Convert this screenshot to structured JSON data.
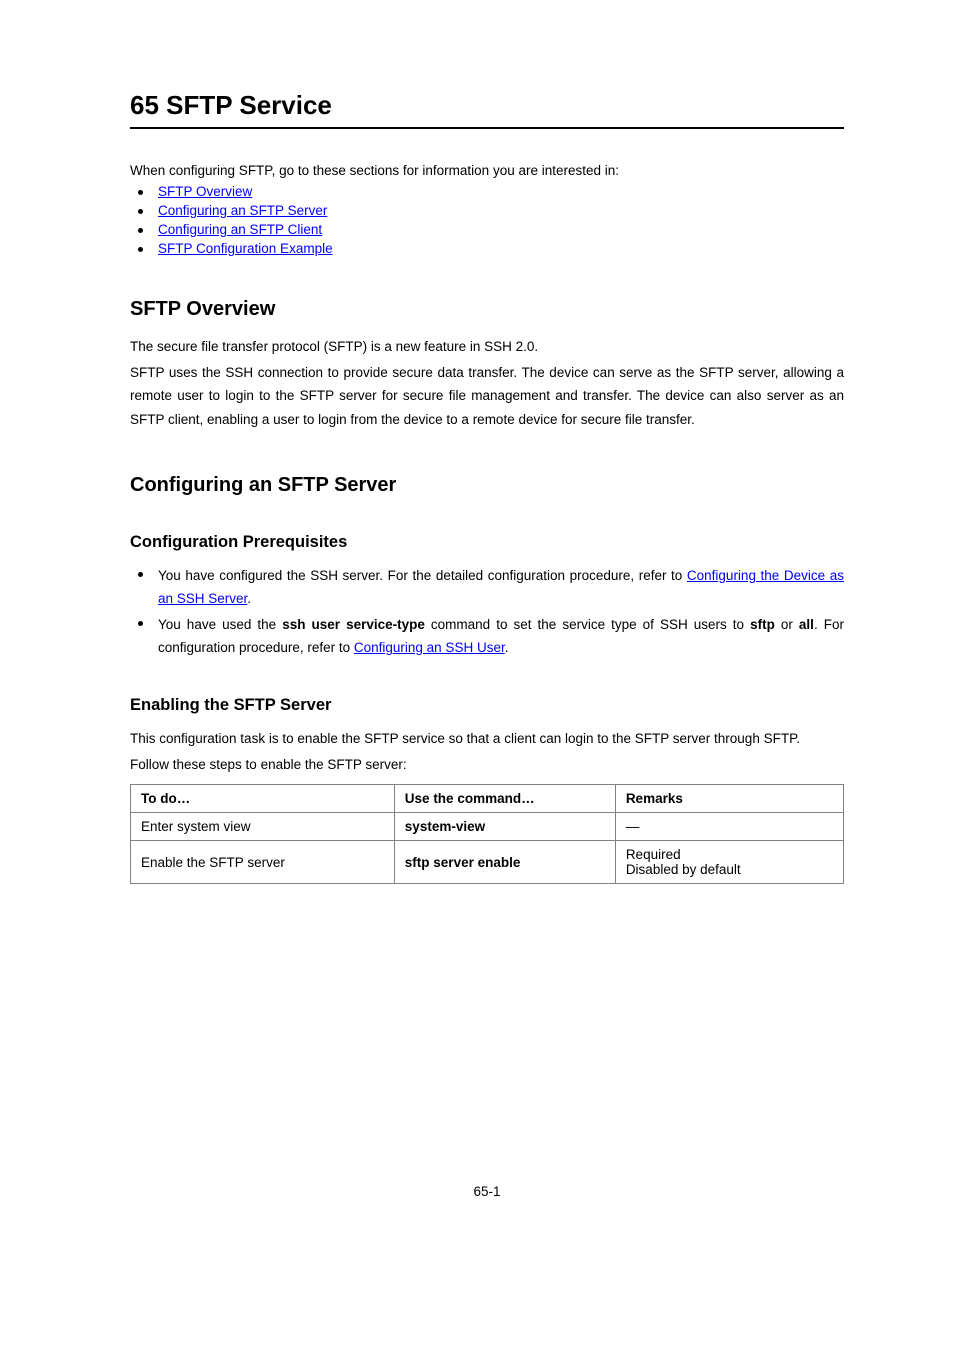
{
  "chapter": {
    "num": "65",
    "title": "SFTP Service"
  },
  "intro": "When configuring SFTP, go to these sections for information you are interested in:",
  "toc": [
    "SFTP Overview",
    "Configuring an SFTP Server",
    "Configuring an SFTP Client",
    "SFTP Configuration Example"
  ],
  "overview": {
    "heading": "SFTP Overview",
    "p1": "The secure file transfer protocol (SFTP) is a new feature in SSH 2.0.",
    "p2": "SFTP uses the SSH connection to provide secure data transfer. The device can serve as the SFTP server, allowing a remote user to login to the SFTP server for secure file management and transfer. The device can also server as an SFTP client, enabling a user to login from the device to a remote device for secure file transfer."
  },
  "server": {
    "heading": "Configuring an SFTP Server",
    "prereq": {
      "heading": "Configuration Prerequisites",
      "item1": {
        "pre": "You have configured the SSH server. For the detailed configuration procedure, refer to ",
        "link": "Configuring the Device as an SSH Server",
        "post": "."
      },
      "item2": {
        "a": "You have used the ",
        "cmd": "ssh user service-type",
        "b": " command to set the service type of SSH users to ",
        "v1": "sftp",
        "c": " or ",
        "v2": "all",
        "d": ". For configuration procedure, refer to ",
        "link": "Configuring an SSH User",
        "e": "."
      }
    },
    "enable": {
      "heading": "Enabling the SFTP Server",
      "p": "This configuration task is to enable the SFTP service so that a client can login to the SFTP server through SFTP.",
      "follow": "Follow these steps to enable the SFTP server:",
      "table": {
        "headers": [
          "To do…",
          "Use the command…",
          "Remarks"
        ],
        "rows": [
          {
            "todo": "Enter system view",
            "cmd": "system-view",
            "rem": "—"
          },
          {
            "todo": "Enable the SFTP server",
            "cmd": "sftp server enable",
            "rem": "Required\nDisabled by default"
          }
        ]
      }
    }
  },
  "page_number": "65-1"
}
